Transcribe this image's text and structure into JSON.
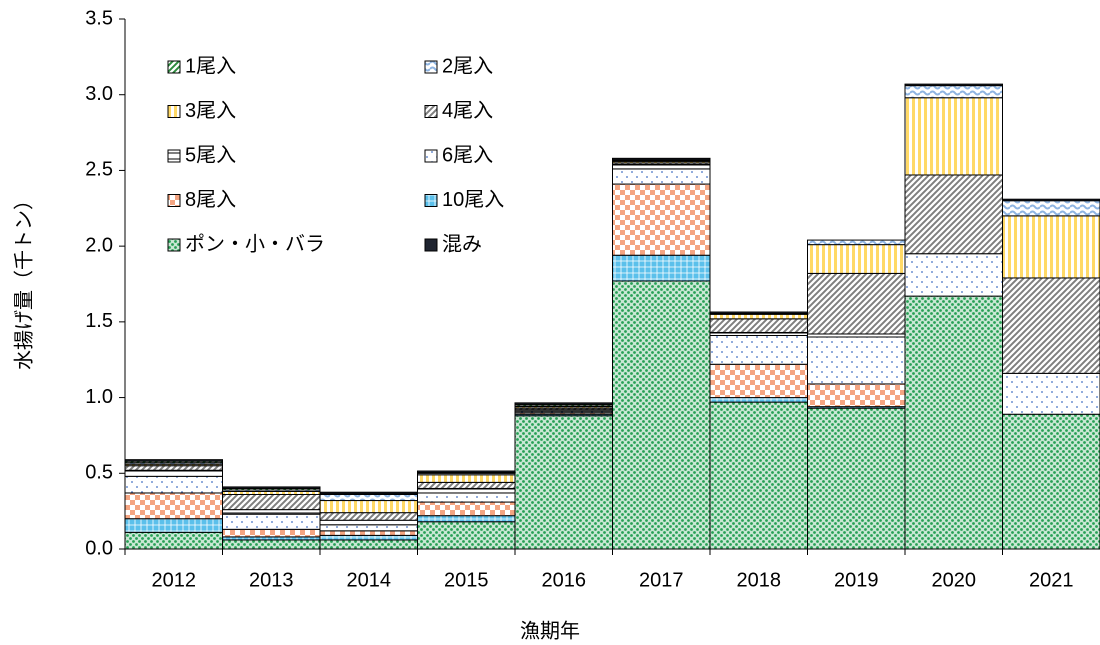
{
  "chart_data": {
    "type": "stacked-bar",
    "x_label": "漁期年",
    "y_label": "水揚げ量（千トン）",
    "categories": [
      "2012",
      "2013",
      "2014",
      "2015",
      "2016",
      "2017",
      "2018",
      "2019",
      "2020",
      "2021"
    ],
    "ylim": [
      0,
      3.5
    ],
    "yticks": [
      {
        "value": 0,
        "label": "0.0"
      },
      {
        "value": 0.5,
        "label": "0.5"
      },
      {
        "value": 1,
        "label": "1.0"
      },
      {
        "value": 1.5,
        "label": "1.5"
      },
      {
        "value": 2,
        "label": "2.0"
      },
      {
        "value": 2.5,
        "label": "2.5"
      },
      {
        "value": 3,
        "label": "3.0"
      },
      {
        "value": 3.5,
        "label": "3.5"
      }
    ],
    "legend": "upper left",
    "series": [
      {
        "name": "1尾入",
        "color": "#2e8b3e",
        "pattern": "diag",
        "values": [
          0.01,
          0.01,
          0.005,
          0.005,
          0.01,
          0.005,
          0,
          0,
          0,
          0
        ]
      },
      {
        "name": "2尾入",
        "color": "#8db4e2",
        "pattern": "wave",
        "values": [
          0.01,
          0.01,
          0.04,
          0.01,
          0.005,
          0.005,
          0.005,
          0.03,
          0.08,
          0.1
        ]
      },
      {
        "name": "3尾入",
        "color": "#ffd966",
        "pattern": "vertical",
        "values": [
          0.01,
          0.02,
          0.08,
          0.05,
          0.01,
          0.01,
          0.03,
          0.19,
          0.51,
          0.41
        ]
      },
      {
        "name": "4尾入",
        "color": "#7f7f7f",
        "pattern": "diag",
        "values": [
          0.03,
          0.1,
          0.05,
          0.04,
          0.01,
          0.01,
          0.09,
          0.4,
          0.52,
          0.63
        ]
      },
      {
        "name": "5尾入",
        "color": "#000000",
        "pattern": "hash",
        "values": [
          0.04,
          0.03,
          0.03,
          0.03,
          0.01,
          0.03,
          0.02,
          0.02,
          0,
          0
        ]
      },
      {
        "name": "6尾入",
        "color": "#4472c4",
        "pattern": "sparse",
        "values": [
          0.11,
          0.1,
          0.04,
          0.06,
          0.01,
          0.1,
          0.19,
          0.31,
          0.28,
          0.27
        ]
      },
      {
        "name": "8尾入",
        "color": "#f4a582",
        "pattern": "checker",
        "values": [
          0.17,
          0.05,
          0.03,
          0.09,
          0.01,
          0.47,
          0.22,
          0.15,
          0,
          0
        ]
      },
      {
        "name": "10尾入",
        "color": "#5bc0eb",
        "pattern": "cross",
        "values": [
          0.09,
          0.02,
          0.03,
          0.04,
          0.01,
          0.17,
          0.03,
          0.01,
          0,
          0
        ]
      },
      {
        "name": "ポン・小・バラ",
        "color": "#27a055",
        "pattern": "dots",
        "values": [
          0.11,
          0.06,
          0.06,
          0.18,
          0.88,
          1.77,
          0.97,
          0.93,
          1.67,
          0.89
        ]
      },
      {
        "name": "混み",
        "color": "#1f2430",
        "pattern": "solid",
        "values": [
          0.01,
          0.01,
          0.01,
          0.01,
          0.01,
          0.01,
          0.01,
          0,
          0.01,
          0.01
        ]
      }
    ]
  }
}
